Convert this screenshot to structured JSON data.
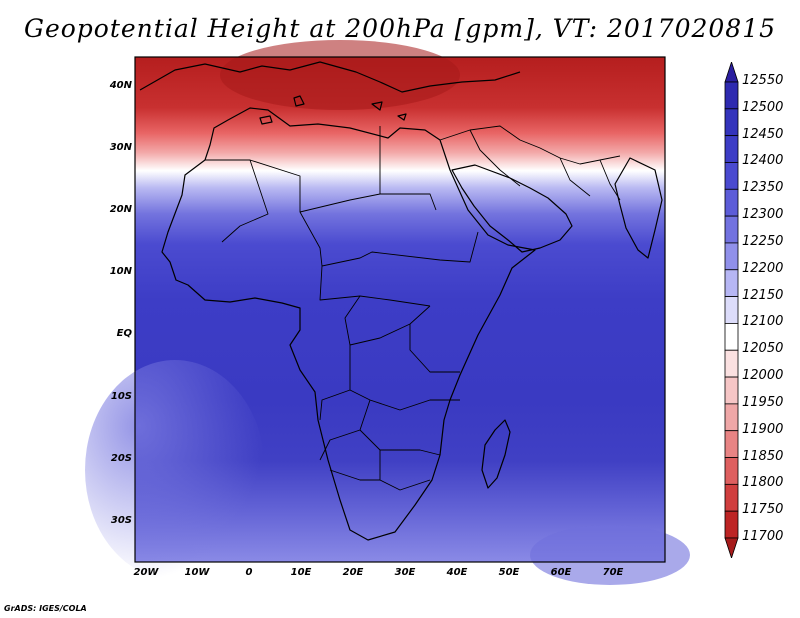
{
  "title": "Geopotential Height at 200hPa [gpm], VT: 2017020815",
  "credit": "GrADS: IGES/COLA",
  "map": {
    "region": "Africa",
    "lon_range": [
      -25,
      80
    ],
    "lat_range": [
      -37,
      45
    ],
    "lat_ticks": [
      "40N",
      "30N",
      "20N",
      "10N",
      "EQ",
      "10S",
      "20S",
      "30S"
    ],
    "lon_ticks": [
      "20W",
      "10W",
      "0",
      "10E",
      "20E",
      "30E",
      "40E",
      "50E",
      "60E",
      "70E"
    ]
  },
  "legend": {
    "levels": [
      "12550",
      "12500",
      "12450",
      "12400",
      "12350",
      "12300",
      "12250",
      "12200",
      "12150",
      "12100",
      "12050",
      "12000",
      "11950",
      "11900",
      "11850",
      "11800",
      "11750",
      "11700"
    ],
    "colors": [
      "#2b1fa0",
      "#2e2ab0",
      "#3434bc",
      "#3d3dc6",
      "#4a4ad0",
      "#5c5cd8",
      "#7272e0",
      "#9090ea",
      "#b6b6f4",
      "#dcdcfa",
      "#ffffff",
      "#fbe1e1",
      "#f6c6c6",
      "#efa7a7",
      "#e88484",
      "#de5f5f",
      "#d03e3e",
      "#bd2424",
      "#a61b1b"
    ]
  },
  "field_colors": {
    "north_hot": "#b51e1e",
    "south_cool": "#3b3bc2"
  }
}
